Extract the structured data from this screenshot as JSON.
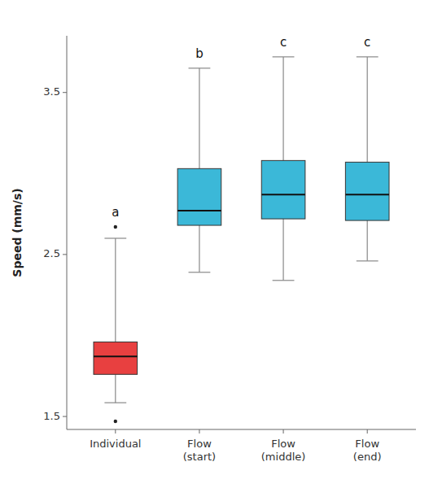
{
  "chart_data": {
    "type": "box",
    "ylabel": "Speed (mm/s)",
    "categories": [
      "Individual",
      "Flow\n(start)",
      "Flow\n(middle)",
      "Flow\n(end)"
    ],
    "boxes": [
      {
        "whislo": 1.585,
        "q1": 1.76,
        "med": 1.87,
        "q3": 1.96,
        "whishi": 2.6,
        "fliers": [
          1.47,
          2.67
        ]
      },
      {
        "whislo": 2.39,
        "q1": 2.68,
        "med": 2.77,
        "q3": 3.03,
        "whishi": 3.65,
        "fliers": []
      },
      {
        "whislo": 2.34,
        "q1": 2.72,
        "med": 2.87,
        "q3": 3.08,
        "whishi": 3.72,
        "fliers": []
      },
      {
        "whislo": 2.46,
        "q1": 2.71,
        "med": 2.87,
        "q3": 3.07,
        "whishi": 3.72,
        "fliers": []
      }
    ],
    "colors": [
      "#E84040",
      "#3BB8D8",
      "#3BB8D8",
      "#3BB8D8"
    ],
    "annotations": [
      {
        "text": "a",
        "y": 2.72
      },
      {
        "text": "b",
        "y": 3.7
      },
      {
        "text": "c",
        "y": 3.77
      },
      {
        "text": "c",
        "y": 3.77
      }
    ],
    "ylim": [
      1.42,
      3.85
    ],
    "yticks": [
      1.5,
      2.5,
      3.5
    ],
    "grid": false
  }
}
